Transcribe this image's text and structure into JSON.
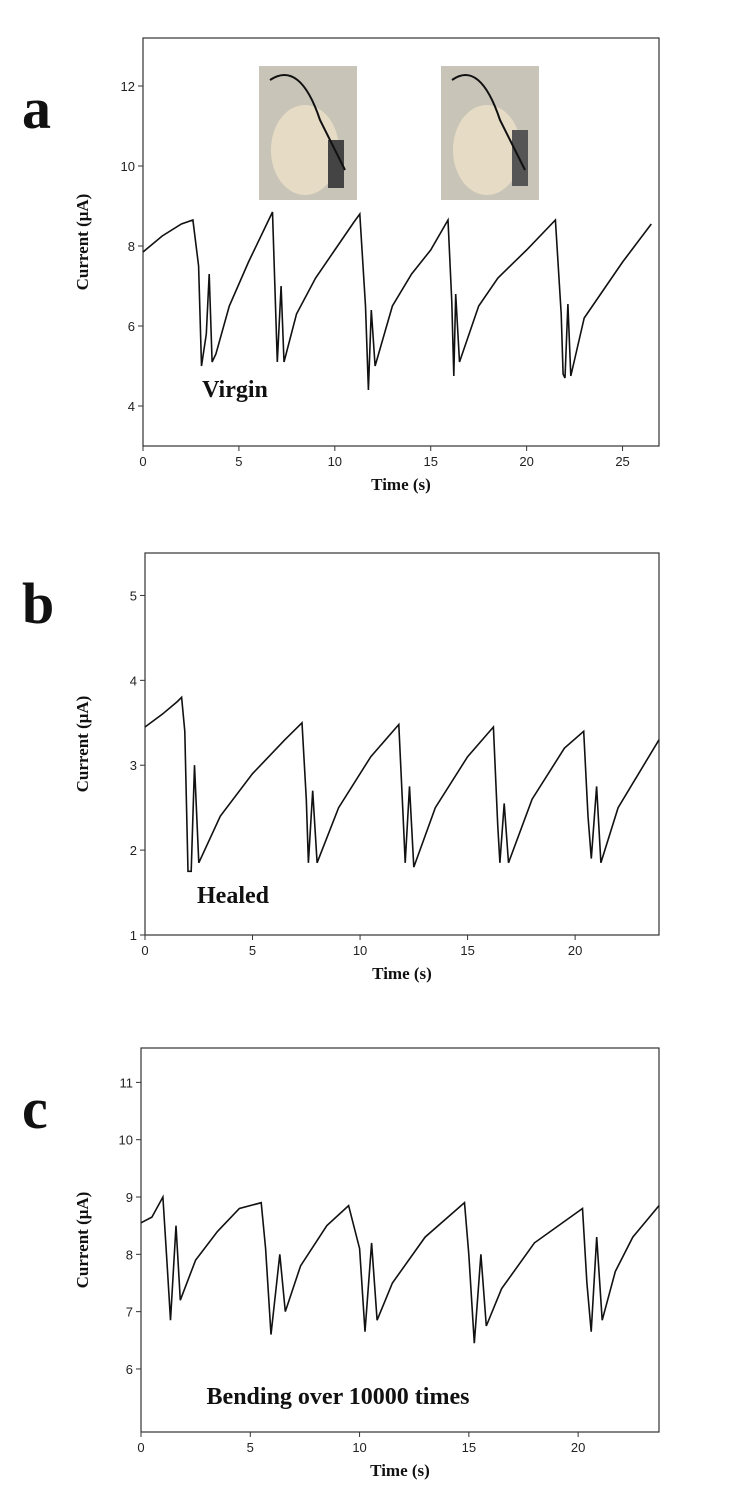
{
  "chart_data": [
    {
      "type": "line",
      "panel_label": "a",
      "x_label": "Time (s)",
      "y_label": "Current (μA)",
      "annotation": "Virgin",
      "color": "#111111",
      "xlim": [
        0,
        26.9
      ],
      "ylim": [
        3,
        13.2
      ],
      "xticks": [
        0,
        5,
        10,
        15,
        20,
        25
      ],
      "yticks": [
        4,
        6,
        8,
        10,
        12
      ],
      "x": [
        0,
        1,
        2,
        2.6,
        2.9,
        3.05,
        3.3,
        3.45,
        3.6,
        3.8,
        4.5,
        5.5,
        6.5,
        6.75,
        7.0,
        7.2,
        7.35,
        8,
        9,
        10,
        11,
        11.3,
        11.6,
        11.75,
        11.9,
        12.1,
        13,
        14,
        15,
        15.9,
        16.1,
        16.2,
        16.3,
        16.5,
        17.5,
        18.5,
        20,
        21.5,
        21.8,
        21.9,
        22.0,
        22.15,
        22.3,
        23,
        24,
        25,
        26.5
      ],
      "values": [
        7.85,
        8.25,
        8.55,
        8.65,
        7.5,
        5.0,
        5.8,
        7.3,
        5.1,
        5.3,
        6.5,
        7.6,
        8.6,
        8.85,
        5.1,
        7.0,
        5.1,
        6.3,
        7.2,
        7.9,
        8.6,
        8.8,
        6.5,
        4.4,
        6.4,
        5.0,
        6.5,
        7.3,
        7.9,
        8.65,
        6.6,
        4.75,
        6.8,
        5.1,
        6.5,
        7.2,
        7.9,
        8.65,
        6.3,
        4.8,
        4.7,
        6.55,
        4.75,
        6.2,
        6.9,
        7.6,
        8.55
      ]
    },
    {
      "type": "line",
      "panel_label": "b",
      "x_label": "Time (s)",
      "y_label": "Current (μA)",
      "annotation": "Healed",
      "color": "#111111",
      "xlim": [
        0,
        23.9
      ],
      "ylim": [
        1,
        5.5
      ],
      "xticks": [
        0,
        5,
        10,
        15,
        20
      ],
      "yticks": [
        1,
        2,
        3,
        4,
        5
      ],
      "x": [
        0,
        0.8,
        1.5,
        1.7,
        1.85,
        2.0,
        2.15,
        2.3,
        2.5,
        3.5,
        5,
        6.5,
        7.3,
        7.5,
        7.6,
        7.8,
        8.0,
        9,
        10.5,
        11.8,
        12.0,
        12.1,
        12.3,
        12.5,
        13.5,
        15,
        16.2,
        16.4,
        16.5,
        16.7,
        16.9,
        18,
        19.5,
        20.4,
        20.6,
        20.75,
        21.0,
        21.2,
        22,
        23.9
      ],
      "values": [
        3.45,
        3.6,
        3.75,
        3.8,
        3.4,
        1.75,
        1.75,
        3.0,
        1.85,
        2.4,
        2.9,
        3.3,
        3.5,
        2.6,
        1.85,
        2.7,
        1.85,
        2.5,
        3.1,
        3.48,
        2.4,
        1.85,
        2.75,
        1.8,
        2.5,
        3.1,
        3.45,
        2.3,
        1.85,
        2.55,
        1.85,
        2.6,
        3.2,
        3.4,
        2.4,
        1.9,
        2.75,
        1.85,
        2.5,
        3.3
      ]
    },
    {
      "type": "line",
      "panel_label": "c",
      "x_label": "Time (s)",
      "y_label": "Current (μA)",
      "annotation": "Bending over 10000 times",
      "color": "#111111",
      "xlim": [
        0,
        23.7
      ],
      "ylim": [
        4.9,
        11.6
      ],
      "xticks": [
        0,
        5,
        10,
        15,
        20
      ],
      "yticks": [
        6,
        7,
        8,
        9,
        10,
        11
      ],
      "x": [
        0,
        0.5,
        1.0,
        1.2,
        1.35,
        1.6,
        1.8,
        2.5,
        3.5,
        4.5,
        5.5,
        5.7,
        5.95,
        6.35,
        6.6,
        7.3,
        8.5,
        9.5,
        10.0,
        10.25,
        10.55,
        10.8,
        11.5,
        13,
        14.8,
        15.0,
        15.25,
        15.55,
        15.8,
        16.5,
        18,
        20.2,
        20.4,
        20.6,
        20.85,
        21.1,
        21.7,
        22.5,
        23.7
      ],
      "values": [
        8.55,
        8.65,
        9.0,
        7.8,
        6.85,
        8.5,
        7.2,
        7.9,
        8.4,
        8.8,
        8.9,
        8.1,
        6.6,
        8.0,
        7.0,
        7.8,
        8.5,
        8.85,
        8.1,
        6.65,
        8.2,
        6.85,
        7.5,
        8.3,
        8.9,
        8.0,
        6.45,
        8.0,
        6.75,
        7.4,
        8.2,
        8.8,
        7.5,
        6.65,
        8.3,
        6.85,
        7.7,
        8.3,
        8.85
      ]
    }
  ]
}
